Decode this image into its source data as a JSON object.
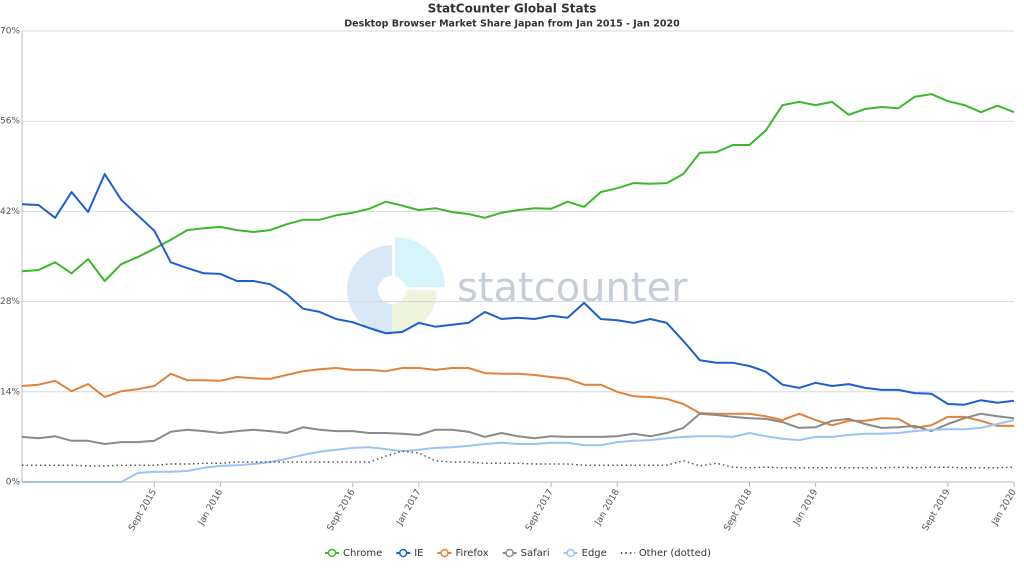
{
  "chart_data": {
    "type": "line",
    "title": "StatCounter Global Stats",
    "subtitle": "Desktop Browser Market Share Japan from Jan 2015 - Jan 2020",
    "watermark": "statcounter",
    "categories": [
      null,
      null,
      null,
      null,
      null,
      null,
      null,
      null,
      "Sept 2015",
      null,
      null,
      null,
      "Jan 2016",
      null,
      null,
      null,
      null,
      null,
      null,
      null,
      "Sept 2016",
      null,
      null,
      null,
      "Jan 2017",
      null,
      null,
      null,
      null,
      null,
      null,
      null,
      "Sept 2017",
      null,
      null,
      null,
      "Jan 2018",
      null,
      null,
      null,
      null,
      null,
      null,
      null,
      "Sept 2018",
      null,
      null,
      null,
      "Jan 2019",
      null,
      null,
      null,
      null,
      null,
      null,
      null,
      "Sept 2019",
      null,
      null,
      null,
      "Jan 2020"
    ],
    "ylim": [
      0,
      70
    ],
    "yticks": [
      {
        "value": 0,
        "label": "0%"
      },
      {
        "value": 14,
        "label": "14%"
      },
      {
        "value": 28,
        "label": "28%"
      },
      {
        "value": 42,
        "label": "42%"
      },
      {
        "value": 56,
        "label": "56%"
      },
      {
        "value": 70,
        "label": "70%"
      }
    ],
    "grid": true,
    "legend": "bottom",
    "series": [
      {
        "name": "Chrome",
        "color": "#3cb82b",
        "style": "solid",
        "values": [
          32.7,
          32.9,
          34.1,
          32.4,
          34.6,
          31.2,
          33.8,
          34.9,
          36.2,
          37.6,
          39.1,
          39.4,
          39.6,
          39.1,
          38.8,
          39.1,
          40.0,
          40.7,
          40.7,
          41.4,
          41.8,
          42.4,
          43.5,
          42.9,
          42.2,
          42.5,
          41.9,
          41.6,
          41.0,
          41.8,
          42.2,
          42.5,
          42.4,
          43.5,
          42.7,
          45.0,
          45.6,
          46.4,
          46.3,
          46.4,
          47.8,
          51.1,
          51.2,
          52.3,
          52.3,
          54.6,
          58.5,
          59.0,
          58.5,
          59.0,
          57.0,
          57.9,
          58.2,
          58.0,
          59.8,
          60.2,
          59.1,
          58.5,
          57.4,
          58.4,
          57.4
        ]
      },
      {
        "name": "IE",
        "color": "#1d5fd0",
        "style": "solid",
        "values": [
          43.1,
          43.0,
          41.0,
          45.0,
          41.9,
          47.8,
          43.8,
          41.4,
          39.0,
          34.1,
          33.2,
          32.4,
          32.3,
          31.2,
          31.2,
          30.7,
          29.2,
          26.9,
          26.4,
          25.3,
          24.8,
          23.9,
          23.1,
          23.3,
          24.7,
          24.1,
          24.4,
          24.7,
          26.4,
          25.3,
          25.5,
          25.3,
          25.8,
          25.5,
          27.8,
          25.3,
          25.1,
          24.7,
          25.3,
          24.7,
          21.9,
          18.9,
          18.5,
          18.5,
          18.0,
          17.1,
          15.1,
          14.6,
          15.4,
          14.9,
          15.2,
          14.6,
          14.3,
          14.3,
          13.8,
          13.7,
          12.1,
          12.0,
          12.7,
          12.3,
          12.6
        ]
      },
      {
        "name": "Firefox",
        "color": "#e0823a",
        "style": "solid",
        "values": [
          14.9,
          15.1,
          15.7,
          14.1,
          15.2,
          13.2,
          14.1,
          14.4,
          14.9,
          16.8,
          15.8,
          15.8,
          15.7,
          16.3,
          16.1,
          16.0,
          16.6,
          17.2,
          17.5,
          17.7,
          17.4,
          17.4,
          17.2,
          17.7,
          17.7,
          17.4,
          17.7,
          17.7,
          16.9,
          16.8,
          16.8,
          16.6,
          16.3,
          16.0,
          15.1,
          15.1,
          14.0,
          13.3,
          13.2,
          12.9,
          12.1,
          10.7,
          10.6,
          10.6,
          10.6,
          10.2,
          9.6,
          10.6,
          9.6,
          8.8,
          9.5,
          9.5,
          9.9,
          9.8,
          8.4,
          8.8,
          10.1,
          10.1,
          9.5,
          8.7,
          8.7
        ]
      },
      {
        "name": "Safari",
        "color": "#8a8a8a",
        "style": "solid",
        "values": [
          7.0,
          6.8,
          7.1,
          6.4,
          6.4,
          5.9,
          6.2,
          6.2,
          6.4,
          7.8,
          8.1,
          7.9,
          7.6,
          7.9,
          8.1,
          7.9,
          7.6,
          8.5,
          8.1,
          7.9,
          7.9,
          7.6,
          7.6,
          7.5,
          7.3,
          8.1,
          8.1,
          7.8,
          7.0,
          7.6,
          7.1,
          6.8,
          7.1,
          7.0,
          7.0,
          7.0,
          7.1,
          7.5,
          7.1,
          7.6,
          8.4,
          10.6,
          10.4,
          10.1,
          9.9,
          9.8,
          9.3,
          8.4,
          8.5,
          9.5,
          9.8,
          9.0,
          8.4,
          8.5,
          8.7,
          7.9,
          9.0,
          9.9,
          10.6,
          10.2,
          9.9
        ]
      },
      {
        "name": "Edge",
        "color": "#9cc4f2",
        "style": "solid",
        "values": [
          0,
          0,
          0,
          0,
          0,
          0,
          0,
          1.4,
          1.6,
          1.6,
          1.7,
          2.2,
          2.5,
          2.6,
          2.8,
          3.1,
          3.6,
          4.2,
          4.7,
          5.0,
          5.3,
          5.4,
          5.1,
          4.8,
          5.0,
          5.3,
          5.4,
          5.6,
          5.9,
          6.1,
          5.9,
          5.9,
          6.1,
          6.1,
          5.7,
          5.7,
          6.2,
          6.4,
          6.5,
          6.8,
          7.0,
          7.1,
          7.1,
          7.0,
          7.6,
          7.1,
          6.7,
          6.5,
          7.0,
          7.0,
          7.3,
          7.5,
          7.5,
          7.6,
          7.9,
          8.1,
          8.2,
          8.2,
          8.4,
          9.0,
          9.6
        ]
      },
      {
        "name": "Other (dotted)",
        "color": "#555555",
        "style": "dotted",
        "values": [
          2.6,
          2.6,
          2.6,
          2.6,
          2.5,
          2.5,
          2.6,
          2.6,
          2.6,
          2.8,
          2.8,
          2.9,
          2.9,
          3.1,
          3.1,
          3.1,
          3.1,
          3.1,
          3.1,
          3.1,
          3.1,
          3.1,
          4.0,
          4.8,
          4.5,
          3.3,
          3.1,
          3.1,
          2.9,
          2.9,
          2.9,
          2.8,
          2.8,
          2.8,
          2.6,
          2.6,
          2.6,
          2.6,
          2.6,
          2.6,
          3.3,
          2.5,
          2.9,
          2.3,
          2.2,
          2.3,
          2.2,
          2.2,
          2.2,
          2.2,
          2.2,
          2.2,
          2.2,
          2.3,
          2.2,
          2.3,
          2.3,
          2.2,
          2.2,
          2.2,
          2.3
        ]
      }
    ]
  }
}
